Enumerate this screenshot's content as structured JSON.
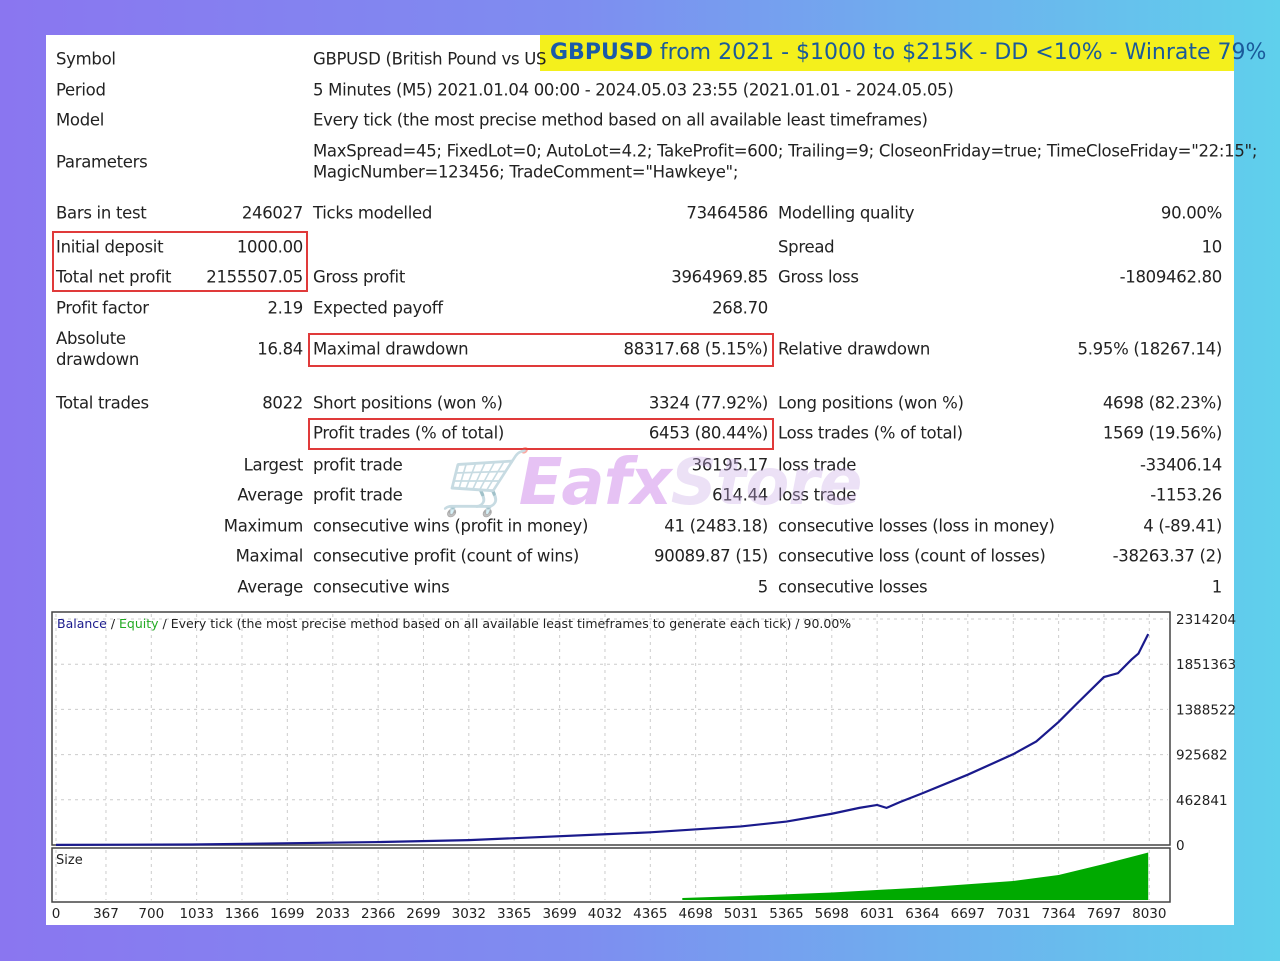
{
  "banner": {
    "symbol": "GBPUSD",
    "text": " from 2021 - $1000 to $215K - DD <10% - Winrate 79%"
  },
  "header": [
    {
      "label": "Symbol",
      "value": "GBPUSD (British Pound vs US"
    },
    {
      "label": "Period",
      "value": "5 Minutes (M5) 2021.01.04 00:00 - 2024.05.03 23:55 (2021.01.01 - 2024.05.05)"
    },
    {
      "label": "Model",
      "value": "Every tick (the most precise method based on all available least timeframes)"
    },
    {
      "label": "Parameters",
      "value": "MaxSpread=45; FixedLot=0; AutoLot=4.2; TakeProfit=600; Trailing=9; CloseonFriday=true; TimeCloseFriday=\"22:15\";",
      "value2": "MagicNumber=123456; TradeComment=\"Hawkeye\";"
    }
  ],
  "stats": [
    [
      "Bars in test",
      "246027",
      "Ticks modelled",
      "73464586",
      "Modelling quality",
      "90.00%"
    ],
    [
      "Initial deposit",
      "1000.00",
      "",
      "",
      "Spread",
      "10"
    ],
    [
      "Total net profit",
      "2155507.05",
      "Gross profit",
      "3964969.85",
      "Gross loss",
      "-1809462.80"
    ],
    [
      "Profit factor",
      "2.19",
      "Expected payoff",
      "268.70",
      "",
      ""
    ],
    [
      "Absolute drawdown",
      "16.84",
      "Maximal drawdown",
      "88317.68 (5.15%)",
      "Relative drawdown",
      "5.95% (18267.14)"
    ],
    [
      "Total trades",
      "8022",
      "Short positions (won %)",
      "3324 (77.92%)",
      "Long positions (won %)",
      "4698 (82.23%)"
    ],
    [
      "",
      "",
      "Profit trades (% of total)",
      "6453 (80.44%)",
      "Loss trades (% of total)",
      "1569 (19.56%)"
    ],
    [
      "",
      "Largest",
      "profit trade",
      "36195.17",
      "loss trade",
      "-33406.14"
    ],
    [
      "",
      "Average",
      "profit trade",
      "614.44",
      "loss trade",
      "-1153.26"
    ],
    [
      "",
      "Maximum",
      "consecutive wins (profit in money)",
      "41 (2483.18)",
      "consecutive losses (loss in money)",
      "4 (-89.41)"
    ],
    [
      "",
      "Maximal",
      "consecutive profit (count of wins)",
      "90089.87 (15)",
      "consecutive loss (count of losses)",
      "-38263.37 (2)"
    ],
    [
      "",
      "Average",
      "consecutive wins",
      "5",
      "consecutive losses",
      "1"
    ]
  ],
  "watermark": {
    "a": "Eafx",
    "b": "Store"
  },
  "chart_data": {
    "type": "line",
    "legend": {
      "balance": "Balance",
      "sep": " / ",
      "equity": "Equity",
      "desc": " / Every tick (the most precise method based on all available least timeframes to generate each tick) / 90.00%"
    },
    "colors": {
      "balance": "#1a1a8c",
      "equity": "#22aa22",
      "size": "#00aa00"
    },
    "y_ticks": [
      "2314204",
      "1851363",
      "1388522",
      "925682",
      "462841",
      "0"
    ],
    "ylim": [
      0,
      2314204
    ],
    "x_ticks": [
      "0",
      "367",
      "700",
      "1033",
      "1366",
      "1699",
      "2033",
      "2366",
      "2699",
      "3032",
      "3365",
      "3699",
      "4032",
      "4365",
      "4698",
      "5031",
      "5365",
      "5698",
      "6031",
      "6364",
      "6697",
      "7031",
      "7364",
      "7697",
      "8030"
    ],
    "size_label": "Size",
    "balance": [
      [
        0,
        1000
      ],
      [
        1000,
        5000
      ],
      [
        2366,
        30000
      ],
      [
        3032,
        50000
      ],
      [
        3365,
        70000
      ],
      [
        4032,
        110000
      ],
      [
        4365,
        130000
      ],
      [
        5031,
        190000
      ],
      [
        5365,
        240000
      ],
      [
        5698,
        320000
      ],
      [
        5900,
        380000
      ],
      [
        6031,
        410000
      ],
      [
        6100,
        380000
      ],
      [
        6200,
        440000
      ],
      [
        6364,
        530000
      ],
      [
        6697,
        720000
      ],
      [
        7031,
        930000
      ],
      [
        7200,
        1060000
      ],
      [
        7364,
        1260000
      ],
      [
        7500,
        1450000
      ],
      [
        7697,
        1720000
      ],
      [
        7800,
        1760000
      ],
      [
        7900,
        1900000
      ],
      [
        7950,
        1960000
      ],
      [
        8022,
        2160000
      ]
    ],
    "size": [
      [
        4600,
        0.04
      ],
      [
        5031,
        0.08
      ],
      [
        5698,
        0.15
      ],
      [
        6364,
        0.25
      ],
      [
        7031,
        0.38
      ],
      [
        7364,
        0.5
      ],
      [
        7697,
        0.72
      ],
      [
        8022,
        0.95
      ]
    ]
  }
}
